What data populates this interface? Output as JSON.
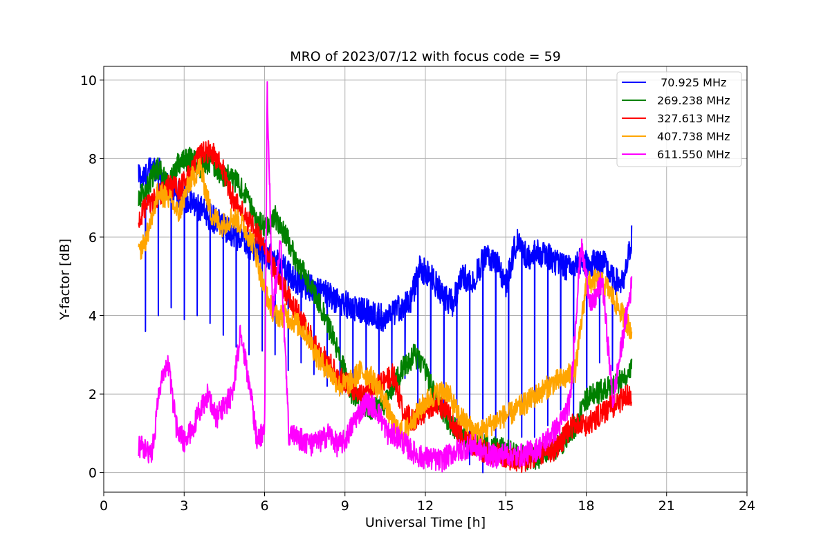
{
  "chart_data": {
    "type": "line",
    "title": "MRO of 2023/07/12 with focus code = 59",
    "xlabel": "Universal Time [h]",
    "ylabel": "Y-factor [dB]",
    "xlim": [
      0,
      24
    ],
    "ylim": [
      -0.5,
      10.35
    ],
    "x_ticks": [
      "0",
      "3",
      "6",
      "9",
      "12",
      "15",
      "18",
      "21",
      "24"
    ],
    "y_ticks": [
      "0",
      "2",
      "4",
      "6",
      "8",
      "10"
    ],
    "grid": true,
    "legend_position": "upper-right",
    "series": [
      {
        "name": " 70.925 MHz",
        "color": "#0000ff",
        "x": [
          1.3,
          1.5,
          1.7,
          2.0,
          2.3,
          2.6,
          3.0,
          3.4,
          3.8,
          4.2,
          4.6,
          5.0,
          5.4,
          5.8,
          6.2,
          6.6,
          7.0,
          7.4,
          7.8,
          8.2,
          8.6,
          9.0,
          9.4,
          9.8,
          10.2,
          10.6,
          11.0,
          11.4,
          11.8,
          12.2,
          12.6,
          13.0,
          13.4,
          13.8,
          14.2,
          14.6,
          15.0,
          15.4,
          15.8,
          16.2,
          16.6,
          17.0,
          17.4,
          17.8,
          18.2,
          18.6,
          19.0,
          19.4,
          19.7
        ],
        "y": [
          7.6,
          7.5,
          7.7,
          7.8,
          7.3,
          7.2,
          7.0,
          6.8,
          6.6,
          6.4,
          6.2,
          6.0,
          5.8,
          5.7,
          5.5,
          5.3,
          5.0,
          4.8,
          4.7,
          4.6,
          4.4,
          4.3,
          4.2,
          4.1,
          4.0,
          3.9,
          4.2,
          4.3,
          5.2,
          5.0,
          4.6,
          4.3,
          5.0,
          4.9,
          5.5,
          5.4,
          4.8,
          5.9,
          5.5,
          5.6,
          5.5,
          5.3,
          5.2,
          5.4,
          5.3,
          5.4,
          4.9,
          4.8,
          6.0
        ],
        "dips_to": [
          3.6,
          4.0,
          4.2,
          3.9,
          4.0,
          3.8,
          3.5,
          3.2,
          3.0,
          3.1,
          3.0,
          2.6,
          2.8,
          2.5,
          2.2,
          2.0,
          2.1,
          2.3,
          2.4,
          2.5,
          2.4,
          1.7,
          2.0,
          1.6,
          1.2,
          0.2,
          0.0,
          0.5,
          0.6,
          0.9,
          0.9,
          1.2,
          1.6,
          1.4,
          1.7,
          2.8,
          2.6
        ]
      },
      {
        "name": "269.238 MHz",
        "color": "#008000",
        "x": [
          1.3,
          1.6,
          2.0,
          2.4,
          2.8,
          3.2,
          3.6,
          4.0,
          4.4,
          4.8,
          5.2,
          5.6,
          6.0,
          6.4,
          6.8,
          7.2,
          7.6,
          8.0,
          8.4,
          8.8,
          9.2,
          9.6,
          10.0,
          10.4,
          10.8,
          11.2,
          11.6,
          12.0,
          12.4,
          12.8,
          13.2,
          13.6,
          14.0,
          14.4,
          14.8,
          15.2,
          15.6,
          16.0,
          16.4,
          16.8,
          17.2,
          17.6,
          18.0,
          18.4,
          18.8,
          19.2,
          19.7
        ],
        "y": [
          7.0,
          7.2,
          7.8,
          7.4,
          7.9,
          8.0,
          7.8,
          7.9,
          7.6,
          7.5,
          7.2,
          6.6,
          6.2,
          6.5,
          6.0,
          5.4,
          4.9,
          4.4,
          3.7,
          3.0,
          2.1,
          1.8,
          1.6,
          1.7,
          2.2,
          2.7,
          3.0,
          2.6,
          1.9,
          1.4,
          1.0,
          0.9,
          0.8,
          0.7,
          0.6,
          0.5,
          0.4,
          0.35,
          0.45,
          0.6,
          0.8,
          1.2,
          1.9,
          2.0,
          2.2,
          2.3,
          2.7
        ]
      },
      {
        "name": "327.613 MHz",
        "color": "#ff0000",
        "x": [
          1.3,
          1.6,
          2.0,
          2.4,
          2.8,
          3.2,
          3.6,
          4.0,
          4.4,
          4.8,
          5.2,
          5.6,
          6.0,
          6.4,
          6.8,
          7.2,
          7.6,
          8.0,
          8.4,
          8.8,
          9.2,
          9.6,
          10.0,
          10.4,
          10.8,
          11.2,
          11.6,
          12.0,
          12.4,
          12.8,
          13.2,
          13.6,
          14.0,
          14.4,
          14.8,
          15.2,
          15.6,
          16.0,
          16.4,
          16.8,
          17.2,
          17.6,
          18.0,
          18.4,
          18.8,
          19.2,
          19.7
        ],
        "y": [
          6.4,
          6.8,
          7.0,
          7.3,
          7.2,
          7.6,
          8.1,
          8.2,
          7.8,
          7.0,
          6.6,
          6.2,
          5.8,
          5.1,
          4.6,
          4.1,
          3.6,
          3.1,
          2.8,
          2.4,
          2.2,
          2.0,
          2.1,
          2.3,
          2.5,
          1.5,
          1.3,
          1.6,
          1.8,
          1.5,
          1.1,
          0.8,
          0.6,
          0.5,
          0.45,
          0.35,
          0.3,
          0.4,
          0.5,
          0.6,
          0.9,
          1.3,
          1.2,
          1.4,
          1.6,
          1.8,
          2.0
        ]
      },
      {
        "name": "407.738 MHz",
        "color": "#ffa500",
        "x": [
          1.3,
          1.6,
          2.0,
          2.4,
          2.8,
          3.2,
          3.6,
          4.0,
          4.4,
          4.8,
          5.2,
          5.6,
          6.0,
          6.4,
          6.8,
          7.2,
          7.6,
          8.0,
          8.4,
          8.8,
          9.2,
          9.6,
          10.0,
          10.4,
          10.8,
          11.2,
          11.6,
          12.0,
          12.4,
          12.8,
          13.2,
          13.6,
          14.0,
          14.4,
          14.8,
          15.2,
          15.6,
          16.0,
          16.4,
          16.8,
          17.2,
          17.6,
          18.0,
          18.4,
          18.8,
          19.2,
          19.7
        ],
        "y": [
          5.6,
          6.0,
          7.1,
          7.0,
          6.6,
          7.4,
          7.8,
          6.6,
          6.3,
          6.5,
          6.3,
          5.8,
          4.6,
          4.0,
          4.0,
          3.8,
          3.5,
          2.9,
          2.6,
          2.2,
          2.3,
          2.6,
          2.4,
          2.0,
          1.2,
          1.0,
          1.4,
          1.8,
          2.0,
          2.1,
          1.5,
          1.2,
          1.0,
          1.2,
          1.4,
          1.5,
          1.7,
          1.9,
          2.1,
          2.3,
          2.4,
          2.6,
          4.8,
          4.9,
          4.7,
          4.2,
          3.6
        ]
      },
      {
        "name": "611.550 MHz",
        "color": "#ff00ff",
        "x": [
          1.3,
          1.5,
          1.8,
          2.1,
          2.4,
          2.7,
          3.0,
          3.3,
          3.6,
          3.9,
          4.2,
          4.5,
          4.8,
          5.1,
          5.4,
          5.7,
          6.0,
          6.1,
          6.3,
          6.6,
          6.9,
          7.2,
          7.5,
          7.8,
          8.1,
          8.4,
          8.7,
          9.0,
          9.4,
          9.8,
          10.2,
          10.6,
          11.0,
          11.4,
          11.8,
          12.2,
          12.6,
          13.0,
          13.4,
          13.8,
          14.2,
          14.6,
          15.0,
          15.4,
          15.8,
          16.2,
          16.6,
          17.0,
          17.4,
          17.8,
          18.2,
          18.6,
          19.0,
          19.4,
          19.7
        ],
        "y": [
          0.7,
          0.6,
          0.5,
          2.2,
          2.8,
          1.2,
          0.8,
          1.1,
          1.6,
          2.0,
          1.4,
          1.7,
          2.0,
          3.5,
          2.4,
          0.9,
          1.0,
          9.8,
          4.2,
          5.8,
          1.0,
          0.9,
          0.8,
          0.7,
          0.8,
          1.0,
          0.7,
          0.8,
          1.4,
          1.8,
          1.6,
          1.0,
          0.9,
          0.6,
          0.4,
          0.35,
          0.3,
          0.5,
          0.6,
          0.7,
          0.5,
          0.4,
          0.5,
          0.4,
          0.5,
          0.6,
          0.9,
          1.2,
          1.8,
          5.8,
          4.2,
          4.9,
          1.8,
          3.6,
          4.8
        ]
      }
    ]
  }
}
